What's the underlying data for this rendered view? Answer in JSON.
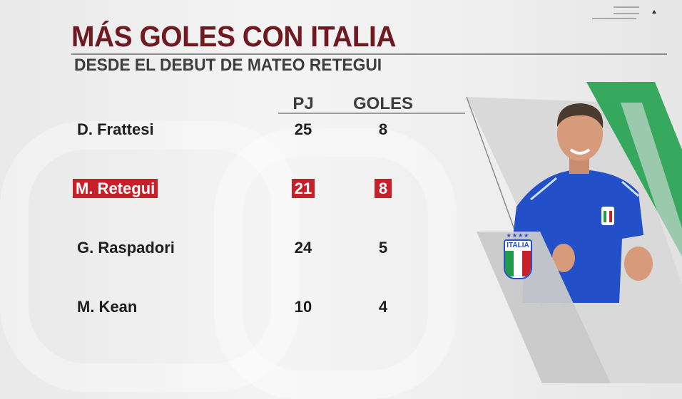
{
  "header": {
    "title": "MÁS GOLES CON ITALIA",
    "subtitle": "DESDE EL DEBUT DE MATEO RETEGUI"
  },
  "table": {
    "columns": [
      "PJ",
      "GOLES"
    ],
    "rows": [
      {
        "name": "D. Frattesi",
        "pj": "25",
        "goles": "8",
        "highlighted": false
      },
      {
        "name": "M. Retegui",
        "pj": "21",
        "goles": "8",
        "highlighted": true
      },
      {
        "name": "G. Raspadori",
        "pj": "24",
        "goles": "5",
        "highlighted": false
      },
      {
        "name": "M. Kean",
        "pj": "10",
        "goles": "4",
        "highlighted": false
      }
    ]
  },
  "badge": {
    "text": "ITALIA",
    "icon": "italy-crest-icon"
  },
  "colors": {
    "title": "#6e1a20",
    "highlight": "#c8202a",
    "green": "#1f9a4a",
    "shirt": "#2350c8"
  }
}
